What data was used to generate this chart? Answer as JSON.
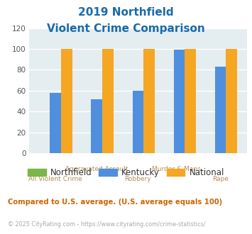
{
  "title_line1": "2019 Northfield",
  "title_line2": "Violent Crime Comparison",
  "categories": [
    "All Violent Crime",
    "Aggravated Assault",
    "Robbery",
    "Murder & Mans...",
    "Rape"
  ],
  "top_labels": [
    "",
    "Aggravated Assault",
    "",
    "Murder & Mans...",
    ""
  ],
  "bottom_labels": [
    "All Violent Crime",
    "",
    "Robbery",
    "",
    "Rape"
  ],
  "northfield": [
    0,
    0,
    0,
    0,
    0
  ],
  "kentucky": [
    58,
    52,
    60,
    99,
    83
  ],
  "national": [
    100,
    100,
    100,
    100,
    100
  ],
  "northfield_color": "#7ab648",
  "kentucky_color": "#4f8fde",
  "national_color": "#f5a623",
  "ylim": [
    0,
    120
  ],
  "yticks": [
    0,
    20,
    40,
    60,
    80,
    100,
    120
  ],
  "background_color": "#e4edf0",
  "title_color": "#1a6aaa",
  "note_text": "Compared to U.S. average. (U.S. average equals 100)",
  "note_color": "#cc6600",
  "copyright_text": "© 2025 CityRating.com - https://www.cityrating.com/crime-statistics/",
  "copyright_color": "#aaaaaa",
  "grid_color": "#ffffff",
  "xtick_color": "#bb8855"
}
